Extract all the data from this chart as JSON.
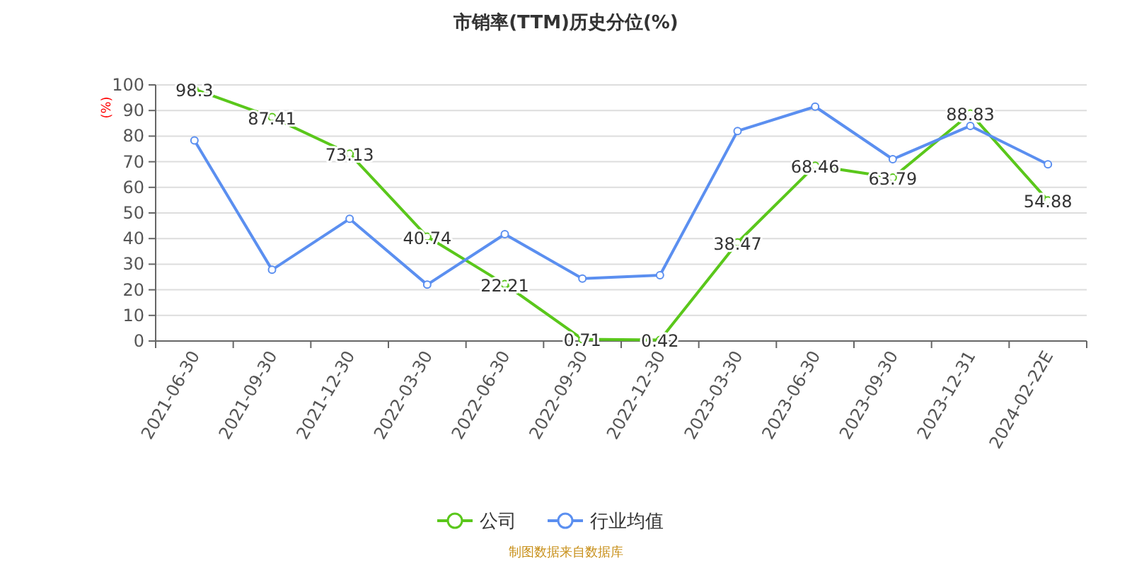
{
  "chart_data": {
    "type": "line",
    "title": "市销率(TTM)历史分位(%)",
    "ylabel": "(%)",
    "categories": [
      "2021-06-30",
      "2021-09-30",
      "2021-12-30",
      "2022-03-30",
      "2022-06-30",
      "2022-09-30",
      "2022-12-30",
      "2023-03-30",
      "2023-06-30",
      "2023-09-30",
      "2023-12-31",
      "2024-02-22E"
    ],
    "series": [
      {
        "name": "公司",
        "color": "#5ac71b",
        "values": [
          98.3,
          87.41,
          73.13,
          40.74,
          22.21,
          0.71,
          0.42,
          38.47,
          68.46,
          63.79,
          88.83,
          54.88
        ],
        "value_labels": [
          "98.3",
          "87.41",
          "73.13",
          "40.74",
          "22.21",
          "0.71",
          "0.42",
          "38.47",
          "68.46",
          "63.79",
          "88.83",
          "54.88"
        ]
      },
      {
        "name": "行业均值",
        "color": "#5b8ff0",
        "values": [
          78.3,
          27.8,
          47.7,
          22,
          41.7,
          24.4,
          25.7,
          82,
          91.5,
          71,
          84,
          69
        ]
      }
    ],
    "ylim": [
      0,
      100
    ],
    "yticks": [
      0,
      10,
      20,
      30,
      40,
      50,
      60,
      70,
      80,
      90,
      100
    ],
    "grid": "y",
    "legend": "bottom",
    "marker": "circle",
    "line_style": "solid",
    "annotations": [
      "制图数据来自数据库"
    ]
  }
}
